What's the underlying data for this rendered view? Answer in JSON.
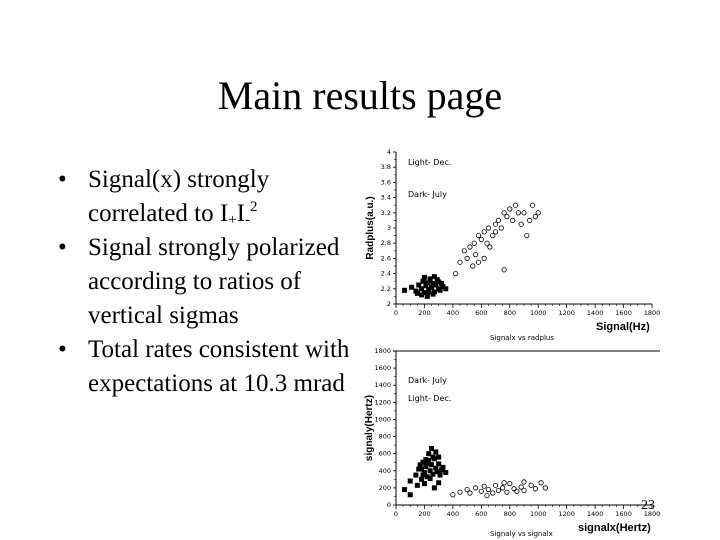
{
  "slide": {
    "title": "Main results page",
    "page_number": "23"
  },
  "bullets": [
    {
      "pre": "Signal(x) strongly correlated to I",
      "sub1": "+",
      "mid": "I",
      "sub2": "-",
      "sup": "2"
    },
    {
      "text": "Signal strongly polarized according to ratios of vertical sigmas"
    },
    {
      "text": "Total rates consistent with expectations at 10.3 mrad"
    }
  ],
  "bullet_glyph": "•",
  "chart_data": [
    {
      "type": "scatter",
      "title": "Signalx vs radplus",
      "xlabel": "Signal(Hz)",
      "ylabel": "Radplus(a.u.)",
      "xlim": [
        0,
        1800
      ],
      "ylim": [
        2,
        4
      ],
      "xticks": [
        "0",
        "200",
        "400",
        "600",
        "800",
        "1000",
        "1200",
        "1400",
        "1600",
        "1800"
      ],
      "yticks": [
        "2",
        "2.2",
        "2.4",
        "2.6",
        "2.8",
        "3",
        "3.2",
        "3.4",
        "3.6",
        "3.8",
        "4"
      ],
      "legend": [
        "Light- Dec.",
        "Dark- July"
      ],
      "series": [
        {
          "name": "Dark- July",
          "marker": "filled-square",
          "color": "#000000",
          "points": [
            [
              60,
              2.18
            ],
            [
              110,
              2.22
            ],
            [
              140,
              2.17
            ],
            [
              160,
              2.25
            ],
            [
              180,
              2.2
            ],
            [
              190,
              2.3
            ],
            [
              200,
              2.15
            ],
            [
              210,
              2.24
            ],
            [
              220,
              2.28
            ],
            [
              230,
              2.19
            ],
            [
              240,
              2.3
            ],
            [
              250,
              2.22
            ],
            [
              260,
              2.27
            ],
            [
              270,
              2.16
            ],
            [
              280,
              2.25
            ],
            [
              290,
              2.32
            ],
            [
              300,
              2.2
            ],
            [
              310,
              2.18
            ],
            [
              320,
              2.27
            ],
            [
              180,
              2.12
            ],
            [
              220,
              2.1
            ],
            [
              260,
              2.13
            ],
            [
              240,
              2.33
            ],
            [
              300,
              2.29
            ],
            [
              200,
              2.35
            ],
            [
              150,
              2.14
            ],
            [
              330,
              2.23
            ],
            [
              350,
              2.2
            ],
            [
              270,
              2.36
            ],
            [
              230,
              2.16
            ]
          ]
        },
        {
          "name": "Light- Dec.",
          "marker": "open-circle",
          "color": "#000000",
          "points": [
            [
              420,
              2.4
            ],
            [
              450,
              2.55
            ],
            [
              480,
              2.7
            ],
            [
              500,
              2.6
            ],
            [
              520,
              2.75
            ],
            [
              550,
              2.8
            ],
            [
              560,
              2.65
            ],
            [
              580,
              2.9
            ],
            [
              600,
              2.85
            ],
            [
              620,
              2.95
            ],
            [
              640,
              2.8
            ],
            [
              650,
              3.0
            ],
            [
              680,
              2.9
            ],
            [
              700,
              3.05
            ],
            [
              720,
              3.1
            ],
            [
              740,
              3.0
            ],
            [
              760,
              3.2
            ],
            [
              780,
              3.15
            ],
            [
              800,
              3.25
            ],
            [
              820,
              3.1
            ],
            [
              840,
              3.3
            ],
            [
              860,
              3.2
            ],
            [
              880,
              3.05
            ],
            [
              900,
              3.2
            ],
            [
              920,
              2.9
            ],
            [
              940,
              3.1
            ],
            [
              960,
              3.3
            ],
            [
              980,
              3.15
            ],
            [
              1000,
              3.2
            ],
            [
              660,
              2.75
            ],
            [
              620,
              2.6
            ],
            [
              540,
              2.5
            ],
            [
              700,
              2.95
            ],
            [
              760,
              2.45
            ],
            [
              580,
              2.55
            ]
          ]
        }
      ]
    },
    {
      "type": "scatter",
      "title": "Signaly vs signalx",
      "xlabel": "signalx(Hertz)",
      "ylabel": "signaly(Hertz)",
      "xlim": [
        0,
        1800
      ],
      "ylim": [
        0,
        1800
      ],
      "xticks": [
        "0",
        "200",
        "400",
        "600",
        "800",
        "1000",
        "1200",
        "1400",
        "1600",
        "1800"
      ],
      "yticks": [
        "0",
        "200",
        "400",
        "600",
        "800",
        "1000",
        "1200",
        "1400",
        "1600",
        "1800"
      ],
      "legend": [
        "Dark- July",
        "Light- Dec."
      ],
      "series": [
        {
          "name": "Dark- July",
          "marker": "filled-square",
          "color": "#000000",
          "points": [
            [
              60,
              180
            ],
            [
              100,
              280
            ],
            [
              140,
              350
            ],
            [
              160,
              420
            ],
            [
              180,
              300
            ],
            [
              190,
              500
            ],
            [
              200,
              380
            ],
            [
              210,
              450
            ],
            [
              220,
              330
            ],
            [
              230,
              520
            ],
            [
              240,
              400
            ],
            [
              250,
              470
            ],
            [
              260,
              360
            ],
            [
              270,
              540
            ],
            [
              280,
              430
            ],
            [
              290,
              390
            ],
            [
              300,
              480
            ],
            [
              310,
              350
            ],
            [
              320,
              410
            ],
            [
              200,
              250
            ],
            [
              230,
              600
            ],
            [
              260,
              560
            ],
            [
              180,
              420
            ],
            [
              240,
              310
            ],
            [
              300,
              260
            ],
            [
              150,
              230
            ],
            [
              280,
              620
            ],
            [
              220,
              490
            ],
            [
              330,
              440
            ],
            [
              350,
              380
            ],
            [
              270,
              200
            ],
            [
              190,
              350
            ],
            [
              250,
              660
            ],
            [
              210,
              530
            ],
            [
              170,
              470
            ],
            [
              300,
              560
            ],
            [
              100,
              120
            ]
          ]
        },
        {
          "name": "Light- Dec.",
          "marker": "open-circle",
          "color": "#000000",
          "points": [
            [
              400,
              120
            ],
            [
              450,
              150
            ],
            [
              500,
              180
            ],
            [
              520,
              140
            ],
            [
              560,
              200
            ],
            [
              600,
              160
            ],
            [
              620,
              220
            ],
            [
              650,
              180
            ],
            [
              680,
              140
            ],
            [
              700,
              230
            ],
            [
              720,
              170
            ],
            [
              750,
              200
            ],
            [
              780,
              150
            ],
            [
              800,
              250
            ],
            [
              830,
              190
            ],
            [
              850,
              160
            ],
            [
              880,
              210
            ],
            [
              900,
              170
            ],
            [
              950,
              230
            ],
            [
              980,
              190
            ],
            [
              1020,
              260
            ],
            [
              1050,
              200
            ],
            [
              760,
              260
            ],
            [
              640,
              110
            ],
            [
              900,
              270
            ]
          ]
        }
      ]
    }
  ]
}
